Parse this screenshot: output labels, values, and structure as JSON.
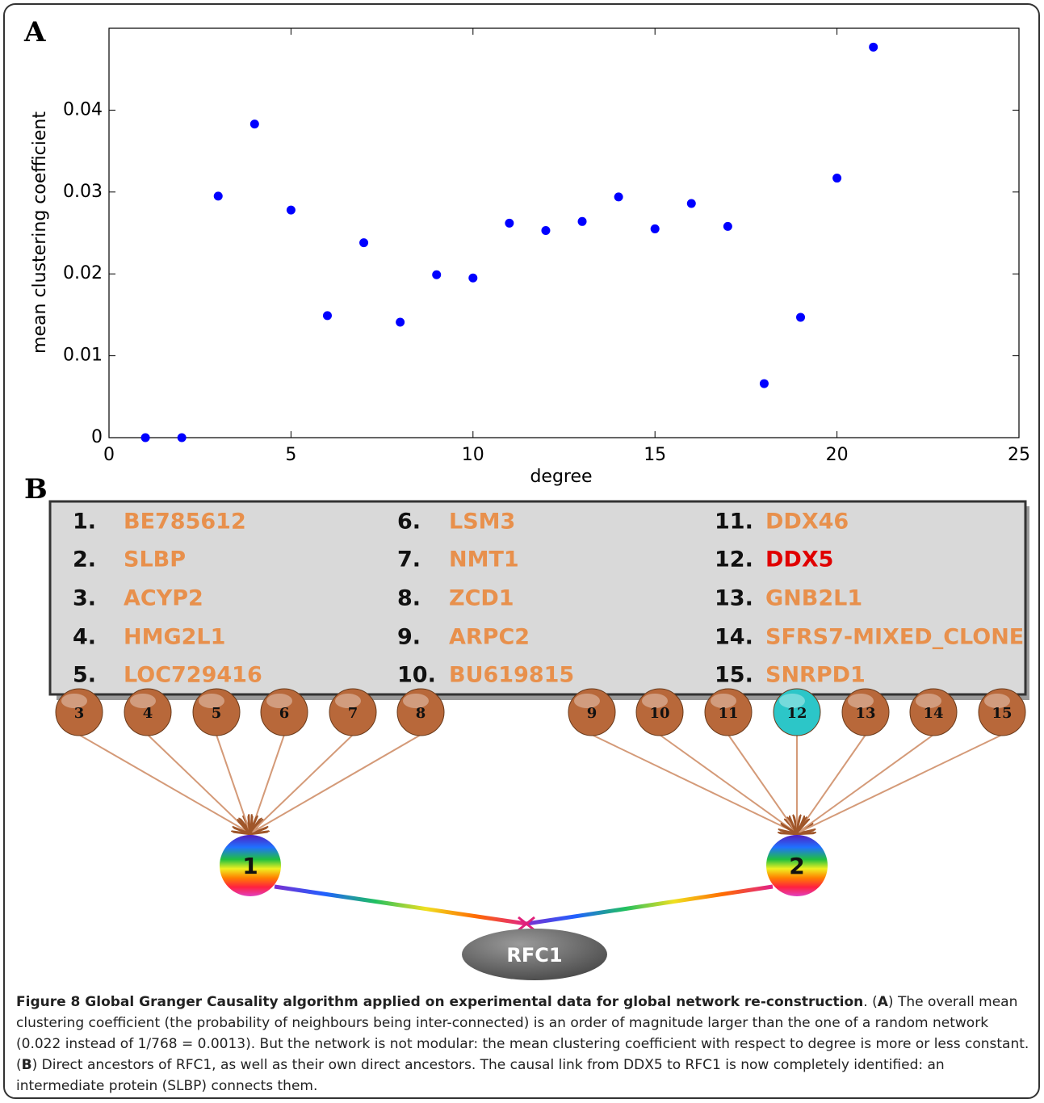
{
  "panels": {
    "a": "A",
    "b": "B"
  },
  "chart_data": {
    "type": "scatter",
    "xlabel": "degree",
    "ylabel": "mean clustering coefficient",
    "x": [
      1,
      2,
      3,
      4,
      5,
      6,
      7,
      8,
      9,
      10,
      11,
      12,
      13,
      14,
      15,
      16,
      17,
      18,
      19,
      20,
      21
    ],
    "values": [
      0,
      0,
      0.0295,
      0.0383,
      0.0278,
      0.0149,
      0.0238,
      0.0141,
      0.0199,
      0.0195,
      0.0262,
      0.0253,
      0.0264,
      0.0294,
      0.0255,
      0.0286,
      0.0258,
      0.0066,
      0.0147,
      0.0317,
      0.0477
    ],
    "color": "#0000ff",
    "xlim": [
      0,
      25
    ],
    "xticks": [
      0,
      5,
      10,
      15,
      20,
      25
    ],
    "ylim": [
      0,
      0.05
    ],
    "yticks": [
      0,
      0.01,
      0.02,
      0.03,
      0.04
    ]
  },
  "table": {
    "entries": [
      {
        "num": "1.",
        "name": "BE785612",
        "color": "#e8904c"
      },
      {
        "num": "2.",
        "name": "SLBP",
        "color": "#e8904c"
      },
      {
        "num": "3.",
        "name": "ACYP2",
        "color": "#e8904c"
      },
      {
        "num": "4.",
        "name": "HMG2L1",
        "color": "#e8904c"
      },
      {
        "num": "5.",
        "name": "LOC729416",
        "color": "#e8904c"
      },
      {
        "num": "6.",
        "name": "LSM3",
        "color": "#e8904c"
      },
      {
        "num": "7.",
        "name": "NMT1",
        "color": "#e8904c"
      },
      {
        "num": "8.",
        "name": "ZCD1",
        "color": "#e8904c"
      },
      {
        "num": "9.",
        "name": "ARPC2",
        "color": "#e8904c"
      },
      {
        "num": "10.",
        "name": "BU619815",
        "color": "#e8904c"
      },
      {
        "num": "11.",
        "name": "DDX46",
        "color": "#e8904c"
      },
      {
        "num": "12.",
        "name": "DDX5",
        "color": "#e00000"
      },
      {
        "num": "13.",
        "name": "GNB2L1",
        "color": "#e8904c"
      },
      {
        "num": "14.",
        "name": "SFRS7-MIXED_CLONE",
        "color": "#e8904c"
      },
      {
        "num": "15.",
        "name": "SNRPD1",
        "color": "#e8904c"
      }
    ]
  },
  "nodes": {
    "left": [
      {
        "label": "3",
        "color": "#b8683a"
      },
      {
        "label": "4",
        "color": "#b8683a"
      },
      {
        "label": "5",
        "color": "#b8683a"
      },
      {
        "label": "6",
        "color": "#b8683a"
      },
      {
        "label": "7",
        "color": "#b8683a"
      },
      {
        "label": "8",
        "color": "#b8683a"
      }
    ],
    "right": [
      {
        "label": "9",
        "color": "#b8683a"
      },
      {
        "label": "10",
        "color": "#b8683a"
      },
      {
        "label": "11",
        "color": "#b8683a"
      },
      {
        "label": "12",
        "color": "#2cc6c8"
      },
      {
        "label": "13",
        "color": "#b8683a"
      },
      {
        "label": "14",
        "color": "#b8683a"
      },
      {
        "label": "15",
        "color": "#b8683a"
      }
    ],
    "hub1": "1",
    "hub2": "2",
    "target": "RFC1"
  },
  "caption": {
    "parts": [
      {
        "text": "Figure 8 Global Granger Causality algorithm applied on experimental data for global network re-construction",
        "bold": true
      },
      {
        "text": ". (",
        "bold": false
      },
      {
        "text": "A",
        "bold": true
      },
      {
        "text": ") The overall mean clustering coefficient (the probability of neighbours being inter-connected) is an order of magnitude larger than the one of a random network (0.022 instead of 1/768 = 0.0013). But the network is not modular: the mean clustering coefficient with respect to degree is more or less constant. (",
        "bold": false
      },
      {
        "text": "B",
        "bold": true
      },
      {
        "text": ") Direct ancestors of RFC1, as well as their own direct ancestors. The causal link from DDX5 to RFC1 is now completely identified: an intermediate protein (SLBP) connects them.",
        "bold": false
      }
    ]
  }
}
